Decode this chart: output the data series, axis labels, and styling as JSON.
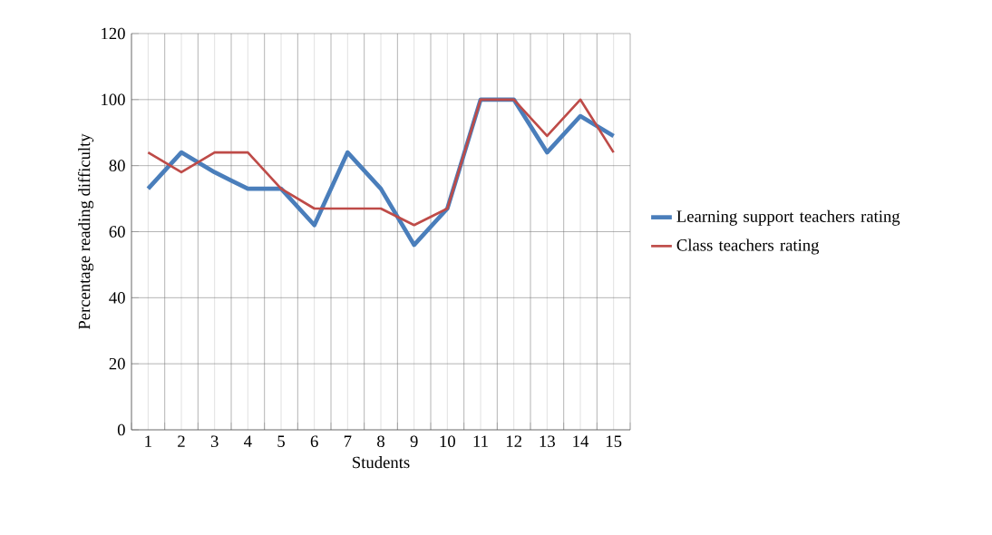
{
  "chart_data": {
    "type": "line",
    "xlabel": "Students",
    "ylabel": "Percentage reading difficulty",
    "categories": [
      "1",
      "2",
      "3",
      "4",
      "5",
      "6",
      "7",
      "8",
      "9",
      "10",
      "11",
      "12",
      "13",
      "14",
      "15"
    ],
    "series": [
      {
        "name": "Learning support teachers rating",
        "color": "#4a7ebb",
        "values": [
          73,
          84,
          78,
          73,
          73,
          62,
          84,
          73,
          56,
          67,
          100,
          100,
          84,
          95,
          89
        ]
      },
      {
        "name": "Class teachers rating",
        "color": "#be4b48",
        "values": [
          84,
          78,
          84,
          84,
          73,
          67,
          67,
          67,
          62,
          67,
          100,
          100,
          89,
          100,
          84
        ]
      }
    ],
    "ylim": [
      0,
      120
    ],
    "yticks": [
      0,
      20,
      40,
      60,
      80,
      100,
      120
    ],
    "grid": true,
    "legend": "right",
    "marker": "none"
  }
}
